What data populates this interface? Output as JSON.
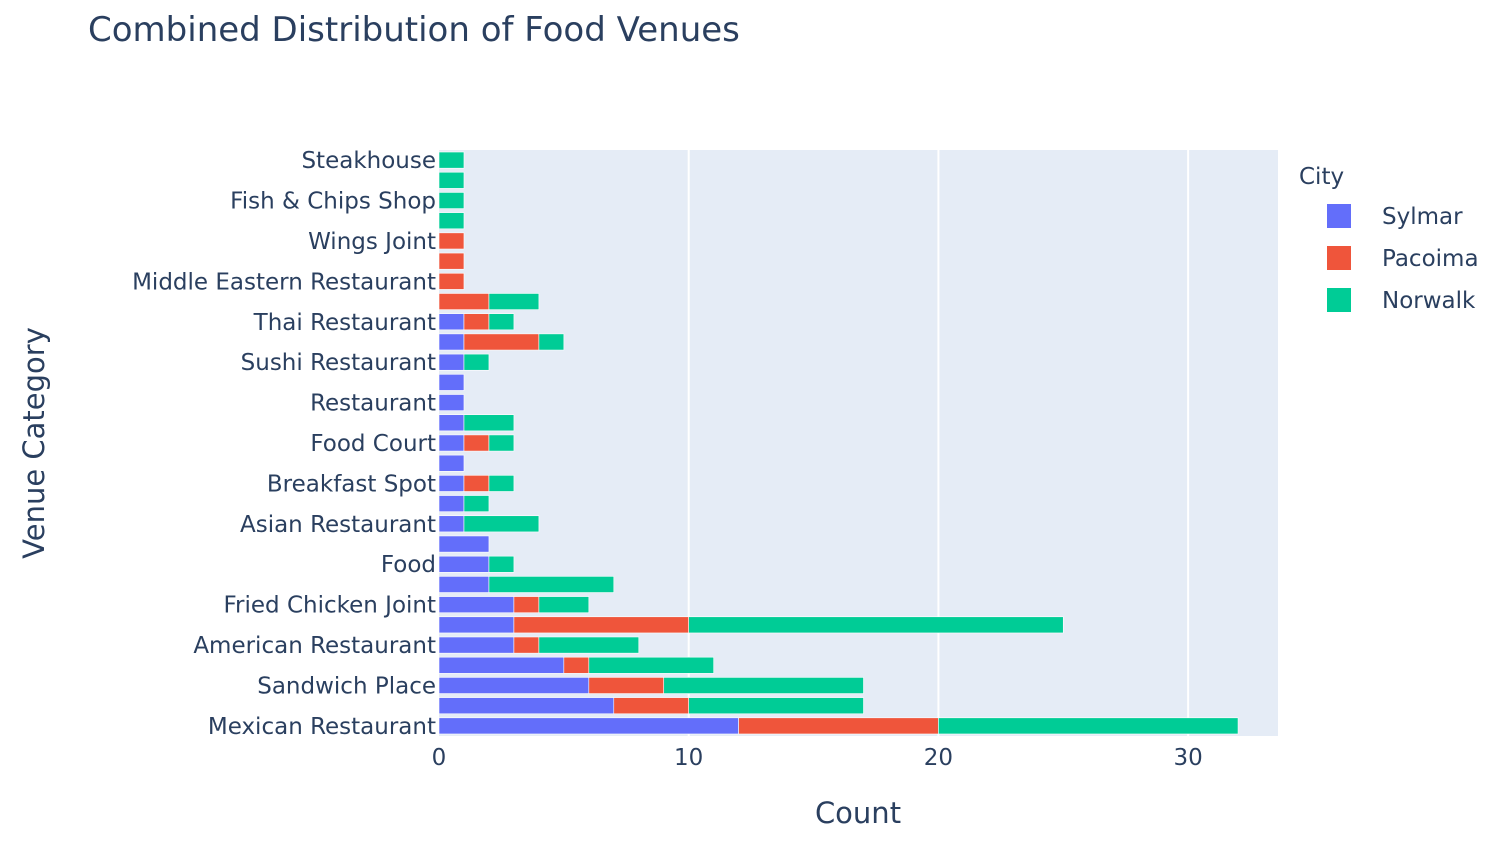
{
  "chart_data": {
    "type": "bar",
    "orientation": "horizontal",
    "stacked": true,
    "title": "Combined Distribution of Food Venues",
    "xlabel": "Count",
    "ylabel": "Venue Category",
    "xlim": [
      0,
      33.6
    ],
    "x_ticks": [
      0,
      10,
      20,
      30
    ],
    "legend_title": "City",
    "legend_position": "right",
    "grid": true,
    "categories": [
      "Mexican Restaurant",
      "",
      "Sandwich Place",
      "",
      "American Restaurant",
      "",
      "Fried Chicken Joint",
      "",
      "Food",
      "",
      "Asian Restaurant",
      "",
      "Breakfast Spot",
      "",
      "Food Court",
      "",
      "Restaurant",
      "",
      "Sushi Restaurant",
      "",
      "Thai Restaurant",
      "",
      "Middle Eastern Restaurant",
      "",
      "Wings Joint",
      "",
      "Fish & Chips Shop",
      "",
      "Steakhouse"
    ],
    "series": [
      {
        "name": "Sylmar",
        "color": "#636efa",
        "values": [
          12,
          7,
          6,
          5,
          3,
          3,
          3,
          2,
          2,
          2,
          1,
          1,
          1,
          1,
          1,
          1,
          1,
          1,
          1,
          1,
          1,
          0,
          0,
          0,
          0,
          0,
          0,
          0,
          0
        ]
      },
      {
        "name": "Pacoima",
        "color": "#ef553b",
        "values": [
          8,
          3,
          3,
          1,
          1,
          7,
          1,
          0,
          0,
          0,
          0,
          0,
          1,
          0,
          1,
          0,
          0,
          0,
          0,
          3,
          1,
          2,
          1,
          1,
          1,
          0,
          0,
          0,
          0
        ]
      },
      {
        "name": "Norwalk",
        "color": "#00cc96",
        "values": [
          12,
          7,
          8,
          5,
          4,
          15,
          2,
          5,
          1,
          0,
          3,
          1,
          1,
          0,
          1,
          2,
          0,
          0,
          1,
          1,
          1,
          2,
          0,
          0,
          0,
          1,
          1,
          1,
          1
        ]
      }
    ]
  }
}
